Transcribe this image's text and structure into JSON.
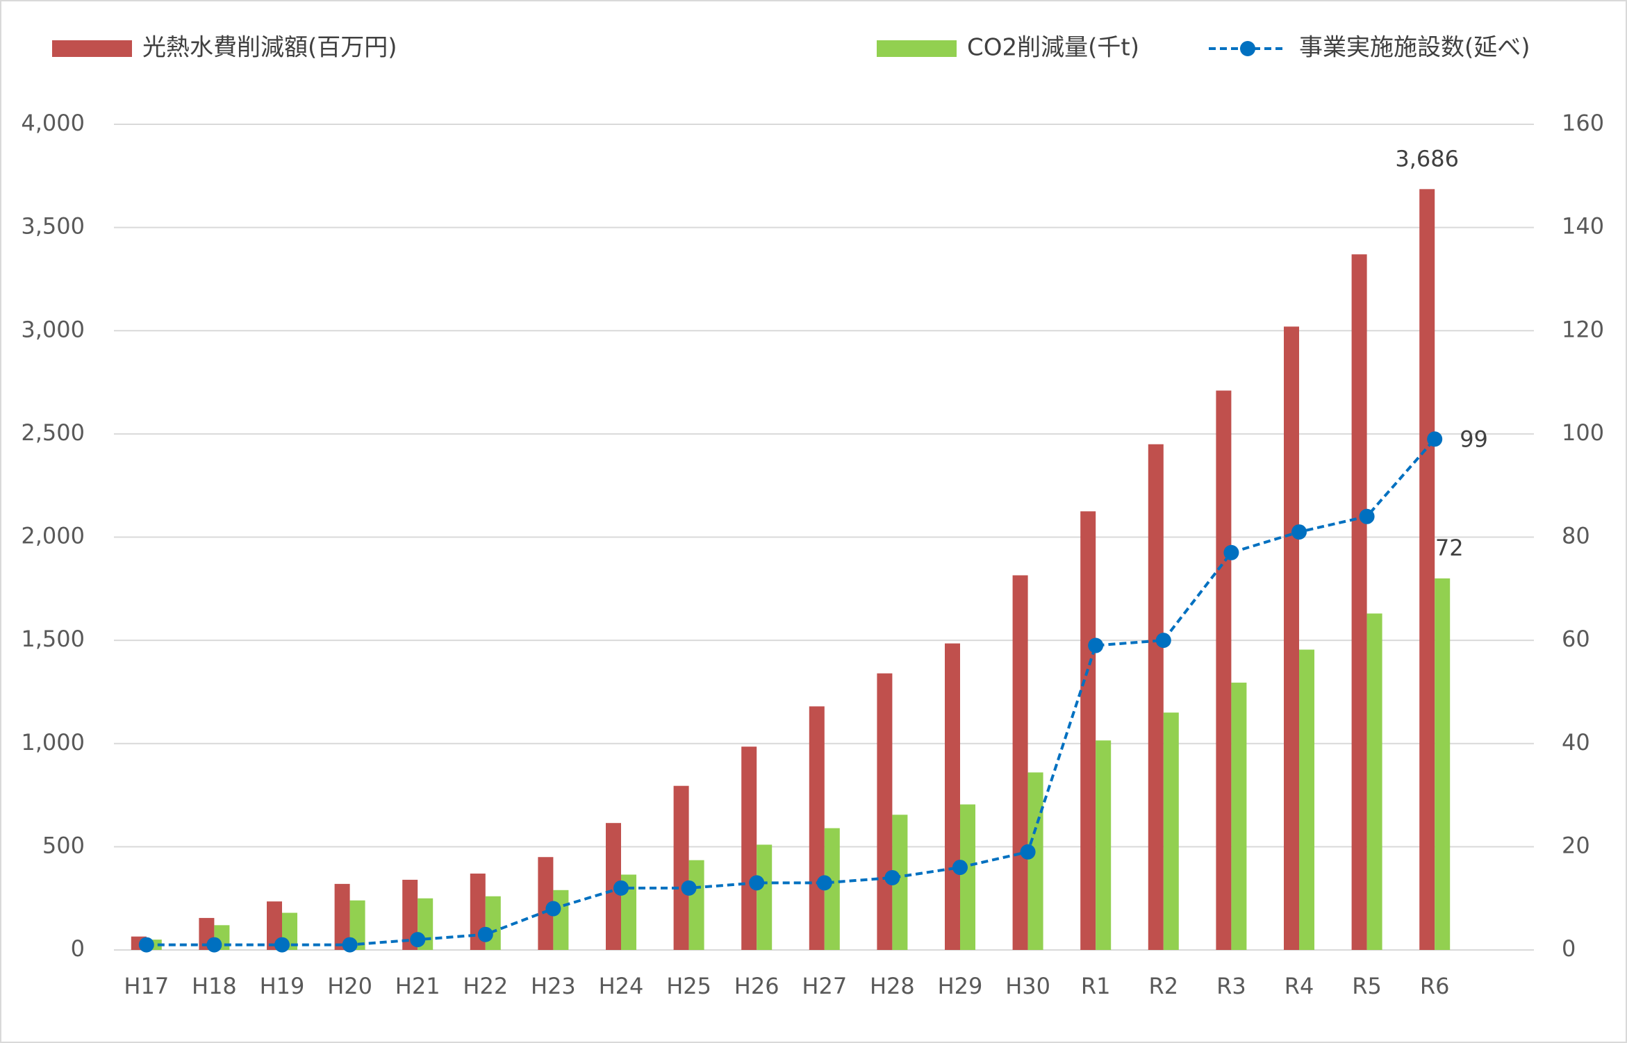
{
  "chart_data": {
    "type": "bar-line",
    "categories": [
      "H17",
      "H18",
      "H19",
      "H20",
      "H21",
      "H22",
      "H23",
      "H24",
      "H25",
      "H26",
      "H27",
      "H28",
      "H29",
      "H30",
      "R1",
      "R2",
      "R3",
      "R4",
      "R5",
      "R6"
    ],
    "series": [
      {
        "name": "光熱水費削減額(百万円)",
        "type": "bar",
        "color": "#c0504d",
        "axis": "y",
        "values": [
          65,
          155,
          235,
          320,
          340,
          370,
          450,
          615,
          795,
          985,
          1180,
          1340,
          1485,
          1815,
          2125,
          2450,
          2710,
          3020,
          3370,
          3686
        ],
        "value_labels": [
          null,
          null,
          null,
          null,
          null,
          null,
          null,
          null,
          null,
          null,
          null,
          null,
          null,
          null,
          null,
          null,
          null,
          null,
          null,
          "3,686"
        ]
      },
      {
        "name": "CO2削減量(千t)",
        "type": "bar",
        "color": "#92d050",
        "axis": "y2",
        "values": [
          2,
          4.8,
          7.2,
          9.6,
          10,
          10.4,
          11.6,
          14.6,
          17.4,
          20.4,
          23.6,
          26.2,
          28.2,
          34.4,
          40.6,
          46,
          51.8,
          58.2,
          65.2,
          72
        ],
        "value_labels": [
          null,
          null,
          null,
          null,
          null,
          null,
          null,
          null,
          null,
          null,
          null,
          null,
          null,
          null,
          null,
          null,
          null,
          null,
          null,
          "72"
        ]
      },
      {
        "name": "事業実施施設数(延べ)",
        "type": "line",
        "color": "#0070c0",
        "axis": "y2",
        "values": [
          1,
          1,
          1,
          1,
          2,
          3,
          8,
          12,
          12,
          13,
          13,
          14,
          16,
          19,
          59,
          60,
          77,
          81,
          84,
          99
        ],
        "value_labels": [
          null,
          null,
          null,
          null,
          null,
          null,
          null,
          null,
          null,
          null,
          null,
          null,
          null,
          null,
          null,
          null,
          null,
          null,
          null,
          "99"
        ]
      }
    ],
    "ylim": [
      0,
      4000
    ],
    "yticks": [
      {
        "value": 0,
        "label": "0"
      },
      {
        "value": 500,
        "label": "500"
      },
      {
        "value": 1000,
        "label": "1,000"
      },
      {
        "value": 1500,
        "label": "1,500"
      },
      {
        "value": 2000,
        "label": "2,000"
      },
      {
        "value": 2500,
        "label": "2,500"
      },
      {
        "value": 3000,
        "label": "3,000"
      },
      {
        "value": 3500,
        "label": "3,500"
      },
      {
        "value": 4000,
        "label": "4,000"
      }
    ],
    "y2lim": [
      0,
      160
    ],
    "y2ticks": [
      0,
      20,
      40,
      60,
      80,
      100,
      120,
      140,
      160
    ],
    "grid": true,
    "legend": "top"
  }
}
